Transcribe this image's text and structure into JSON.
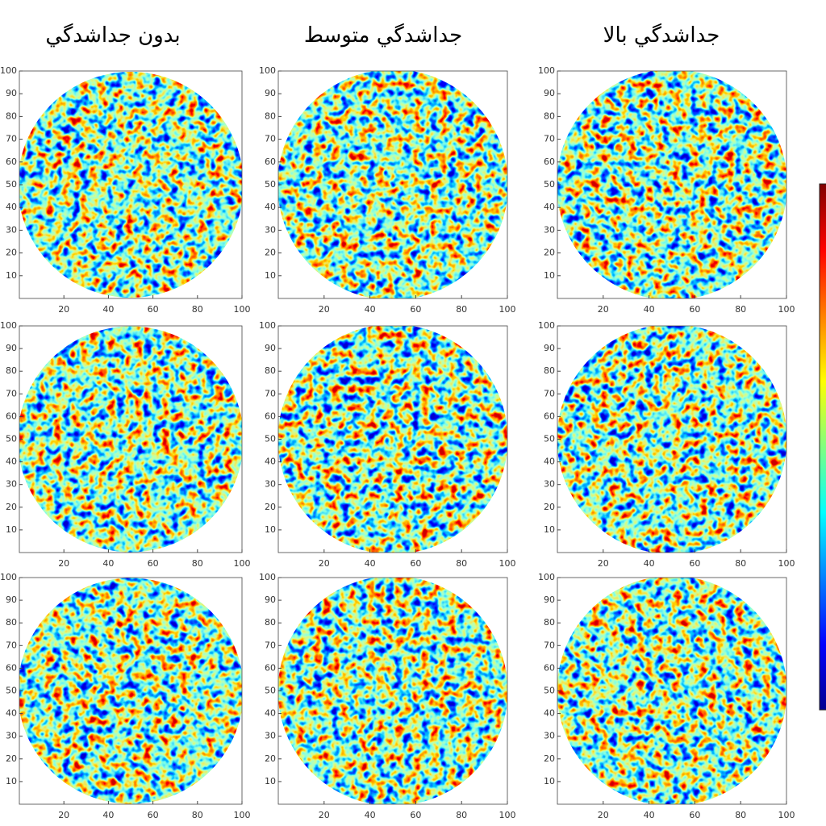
{
  "columns": [
    {
      "title": "بدون جداشدگي"
    },
    {
      "title": "جداشدگي متوسط"
    },
    {
      "title": "جداشدگي بالا"
    }
  ],
  "axes": {
    "xlim": [
      0,
      100
    ],
    "ylim": [
      0,
      100
    ],
    "xticks": [
      20,
      40,
      60,
      80,
      100
    ],
    "yticks": [
      10,
      20,
      30,
      40,
      50,
      60,
      70,
      80,
      90,
      100
    ]
  }
}
